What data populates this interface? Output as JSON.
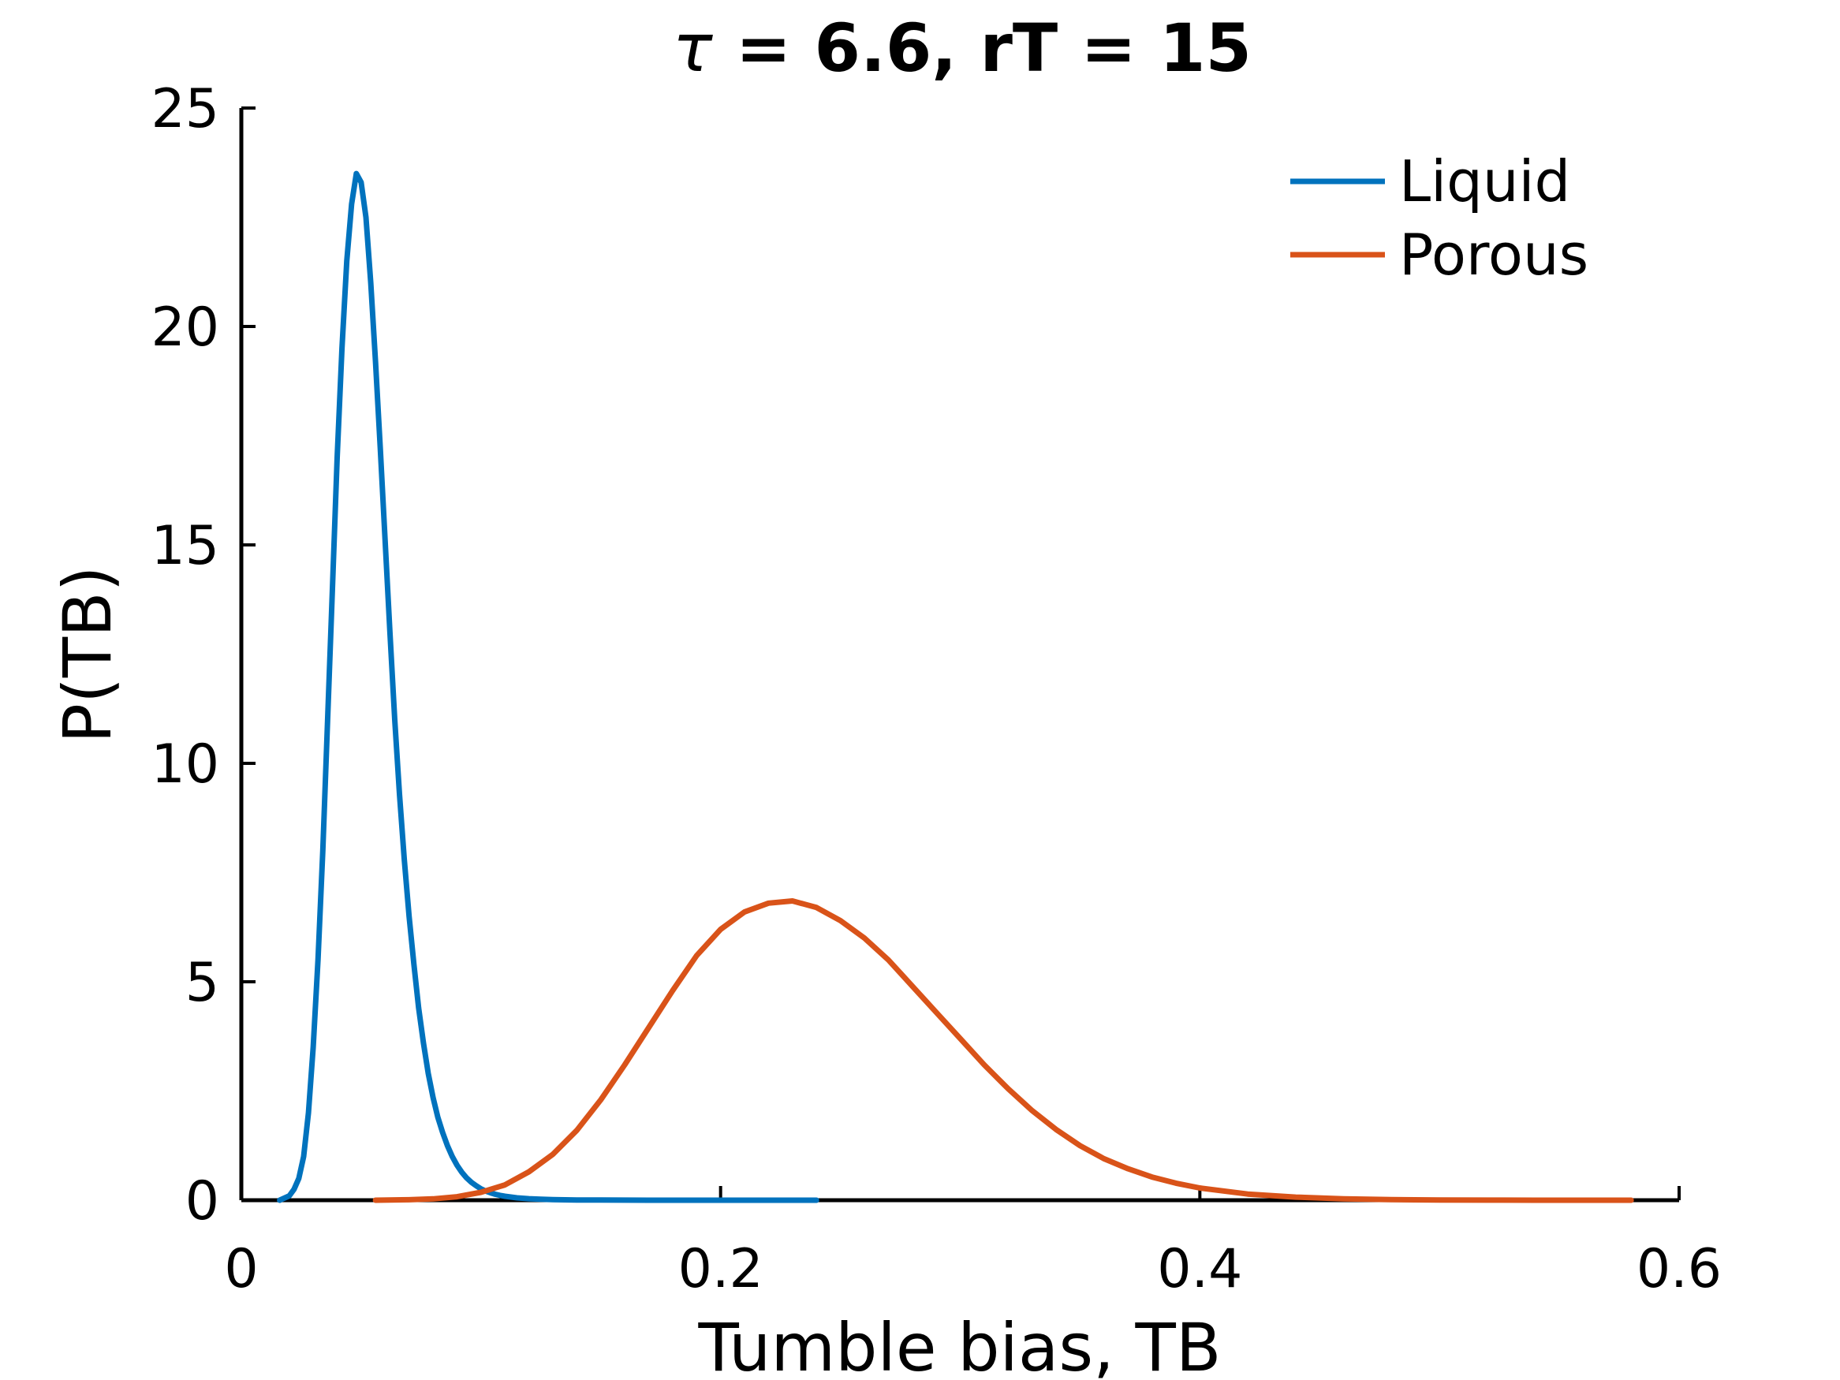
{
  "chart_data": {
    "type": "line",
    "title_symbol": "τ",
    "title_rest": " = 6.6, rT = 15",
    "xlabel": "Tumble bias, TB",
    "ylabel": "P(TB)",
    "xlim": [
      0,
      0.6
    ],
    "ylim": [
      0,
      25
    ],
    "xticks": [
      0,
      0.2,
      0.4,
      0.6
    ],
    "xtick_labels": [
      "0",
      "0.2",
      "0.4",
      "0.6"
    ],
    "yticks": [
      0,
      5,
      10,
      15,
      20,
      25
    ],
    "ytick_labels": [
      "0",
      "5",
      "10",
      "15",
      "20",
      "25"
    ],
    "grid": false,
    "legend_position": "top-right",
    "series": [
      {
        "name": "Liquid",
        "color": "#0072BD",
        "x": [
          0.016,
          0.02,
          0.022,
          0.024,
          0.026,
          0.028,
          0.03,
          0.032,
          0.034,
          0.036,
          0.038,
          0.04,
          0.042,
          0.044,
          0.046,
          0.048,
          0.05,
          0.052,
          0.054,
          0.056,
          0.058,
          0.06,
          0.062,
          0.064,
          0.066,
          0.068,
          0.07,
          0.072,
          0.074,
          0.076,
          0.078,
          0.08,
          0.082,
          0.084,
          0.086,
          0.088,
          0.09,
          0.092,
          0.094,
          0.096,
          0.098,
          0.1,
          0.102,
          0.104,
          0.106,
          0.108,
          0.11,
          0.115,
          0.12,
          0.125,
          0.13,
          0.135,
          0.14,
          0.15,
          0.16,
          0.17,
          0.18,
          0.2,
          0.22,
          0.24
        ],
        "y": [
          0.0,
          0.1,
          0.25,
          0.5,
          1.0,
          2.0,
          3.5,
          5.5,
          8.0,
          11.0,
          14.0,
          17.0,
          19.5,
          21.5,
          22.8,
          23.5,
          23.3,
          22.5,
          21.0,
          19.2,
          17.2,
          15.1,
          13.0,
          11.0,
          9.3,
          7.8,
          6.5,
          5.4,
          4.4,
          3.6,
          2.9,
          2.35,
          1.9,
          1.55,
          1.25,
          1.0,
          0.8,
          0.64,
          0.51,
          0.41,
          0.33,
          0.26,
          0.21,
          0.17,
          0.135,
          0.11,
          0.09,
          0.055,
          0.035,
          0.022,
          0.014,
          0.009,
          0.006,
          0.003,
          0.0015,
          0.0008,
          0.0004,
          0.0001,
          0.0,
          0.0
        ]
      },
      {
        "name": "Porous",
        "color": "#D95319",
        "x": [
          0.056,
          0.07,
          0.08,
          0.09,
          0.1,
          0.11,
          0.12,
          0.13,
          0.14,
          0.15,
          0.16,
          0.17,
          0.18,
          0.19,
          0.2,
          0.21,
          0.22,
          0.23,
          0.24,
          0.25,
          0.26,
          0.27,
          0.28,
          0.29,
          0.3,
          0.31,
          0.32,
          0.33,
          0.34,
          0.35,
          0.36,
          0.37,
          0.38,
          0.39,
          0.4,
          0.42,
          0.44,
          0.46,
          0.48,
          0.5,
          0.52,
          0.54,
          0.56,
          0.58
        ],
        "y": [
          0.0,
          0.01,
          0.03,
          0.08,
          0.18,
          0.35,
          0.65,
          1.05,
          1.6,
          2.3,
          3.1,
          3.95,
          4.8,
          5.6,
          6.2,
          6.6,
          6.8,
          6.85,
          6.7,
          6.4,
          6.0,
          5.5,
          4.9,
          4.3,
          3.7,
          3.1,
          2.55,
          2.05,
          1.62,
          1.25,
          0.95,
          0.72,
          0.53,
          0.39,
          0.28,
          0.14,
          0.07,
          0.03,
          0.012,
          0.005,
          0.002,
          0.0008,
          0.0003,
          0.0
        ]
      }
    ]
  }
}
